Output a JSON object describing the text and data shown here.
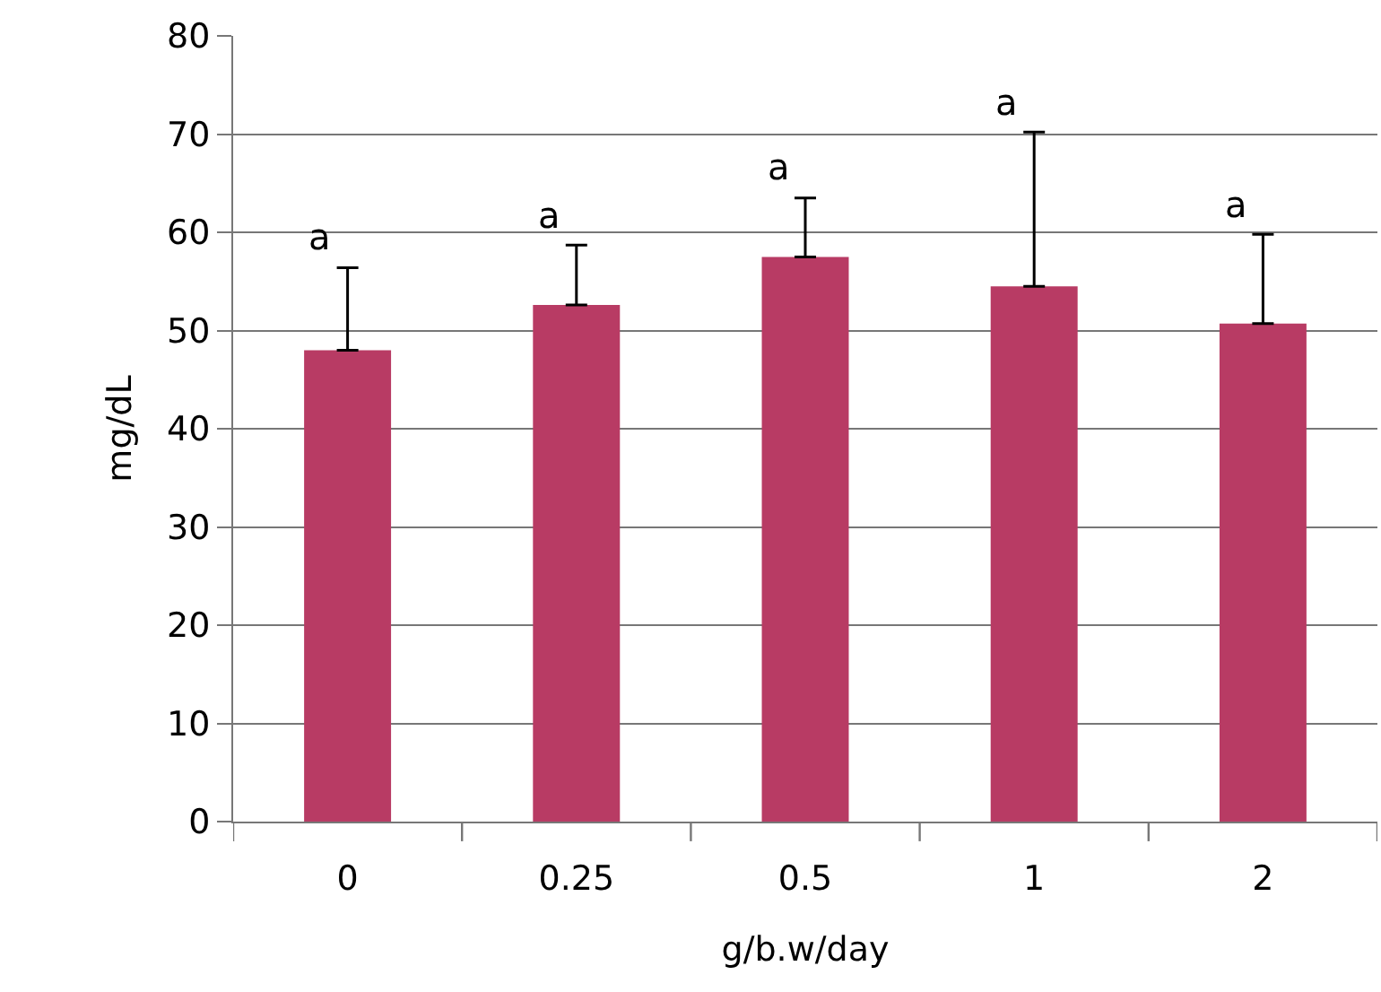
{
  "chart_data": {
    "type": "bar",
    "xlabel": "g/b.w/day",
    "ylabel": "mg/dL",
    "categories": [
      "0",
      "0.25",
      "0.5",
      "1",
      "2"
    ],
    "values": [
      48,
      52.6,
      57.5,
      54.5,
      50.7
    ],
    "errors": [
      [
        48,
        56.4
      ],
      [
        52.6,
        58.7
      ],
      [
        57.5,
        63.5
      ],
      [
        54.5,
        70.2
      ],
      [
        50.7,
        59.8
      ]
    ],
    "color": "#b83b64",
    "ylim": [
      0,
      80
    ],
    "yticks": [
      0,
      10,
      20,
      30,
      40,
      50,
      60,
      70,
      80
    ],
    "grid": "y",
    "annotations": [
      "a",
      "a",
      "a",
      "a",
      "a"
    ]
  }
}
